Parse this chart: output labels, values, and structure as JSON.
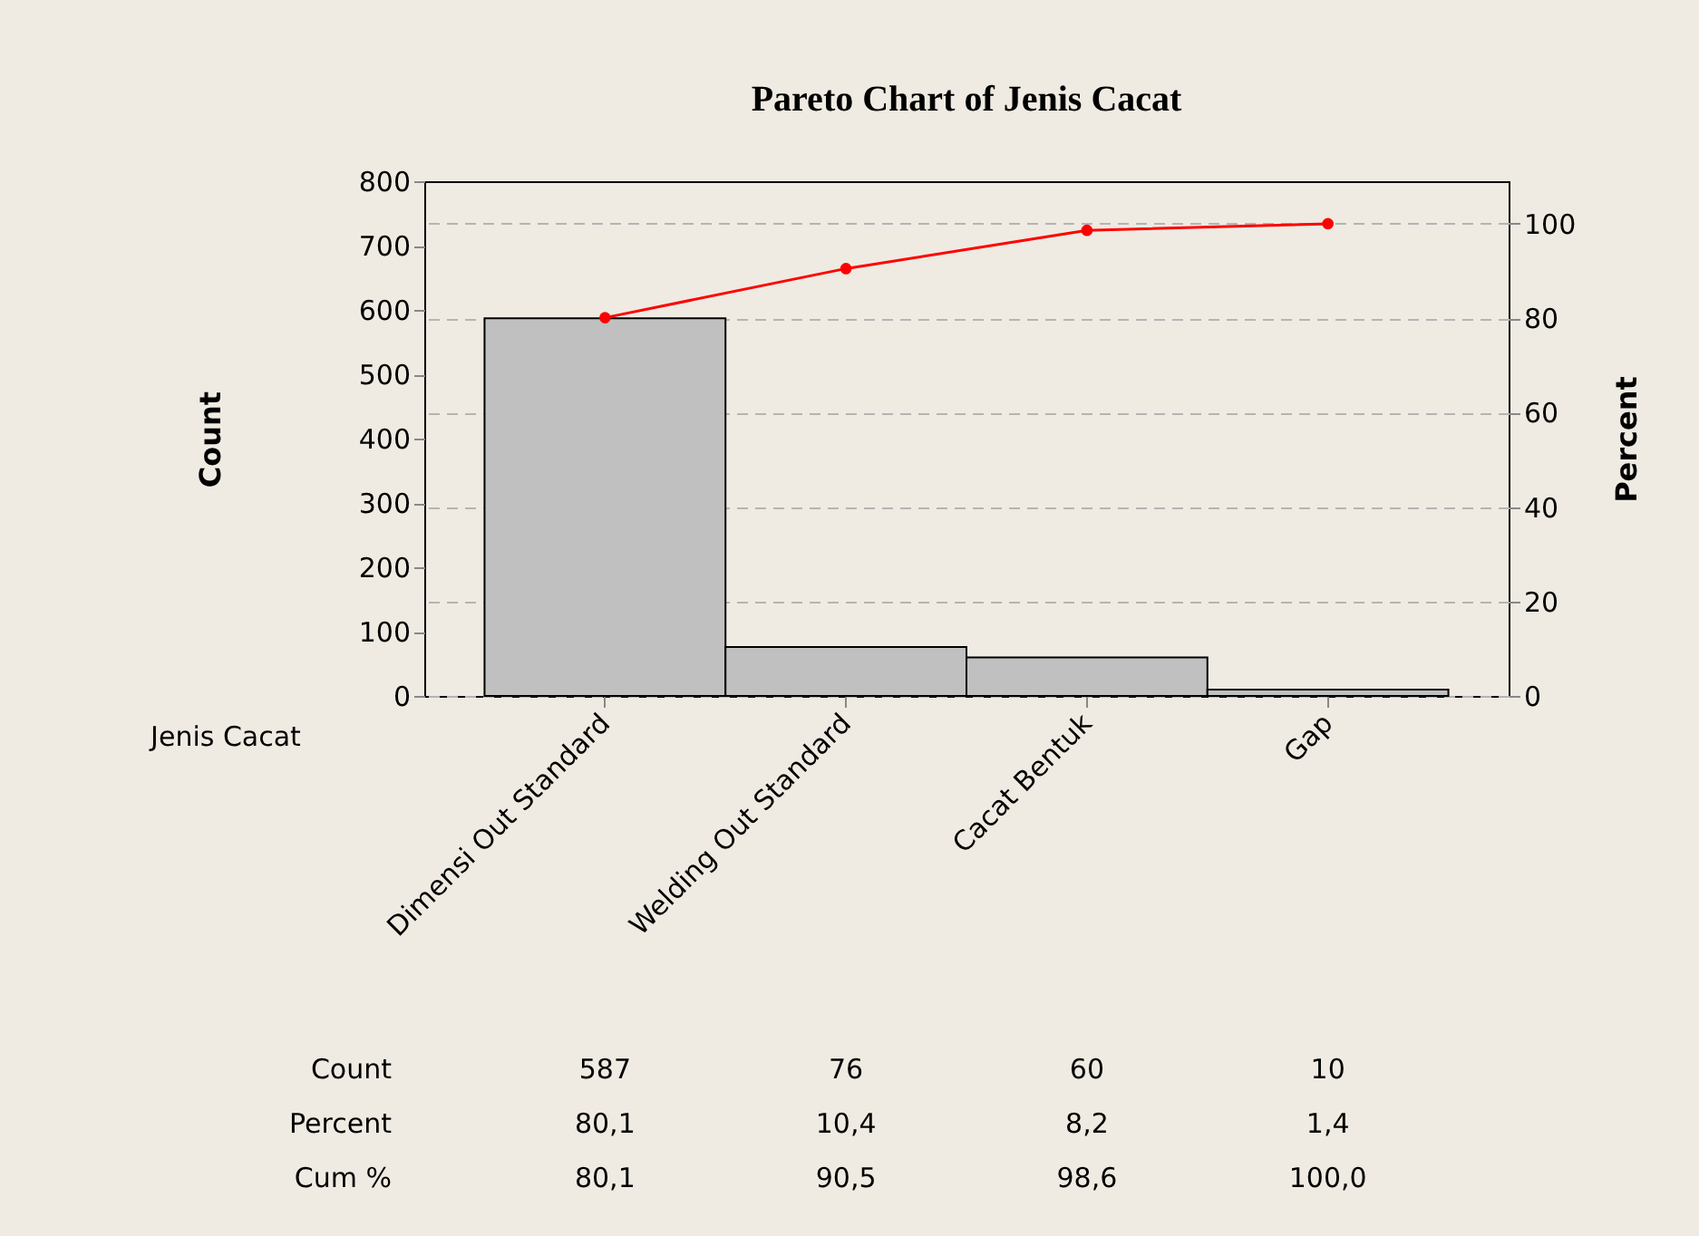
{
  "chart_data": {
    "type": "bar",
    "title": "Pareto Chart of Jenis Cacat",
    "xlabel": "Jenis Cacat",
    "ylabel": "Count",
    "y2label": "Percent",
    "categories": [
      "Dimensi Out Standard",
      "Welding Out Standard",
      "Cacat Bentuk",
      "Gap"
    ],
    "series": [
      {
        "color": "#c0c0c0",
        "values": [
          587,
          76,
          60,
          10
        ],
        "value_labels": [
          "587",
          "76",
          "60",
          "10"
        ]
      },
      {
        "type": "line",
        "axis": "y2",
        "color": "#ff0000",
        "values": [
          80.1,
          90.5,
          98.6,
          100.0
        ],
        "value_labels": [
          "80,1",
          "90,5",
          "98,6",
          "100,0"
        ]
      }
    ],
    "ylim": [
      0,
      800
    ],
    "yticks": [
      0,
      100,
      200,
      300,
      400,
      500,
      600,
      700,
      800
    ],
    "y2lim": [
      0,
      109
    ],
    "y2ticks": [
      0,
      20,
      40,
      60,
      80,
      100
    ],
    "grid": "y2",
    "marker": "circle",
    "line_style": "solid",
    "annotations": [
      "Count",
      "Percent",
      "Cum %",
      "80,1",
      "10,4",
      "8,2",
      "1,4"
    ]
  }
}
